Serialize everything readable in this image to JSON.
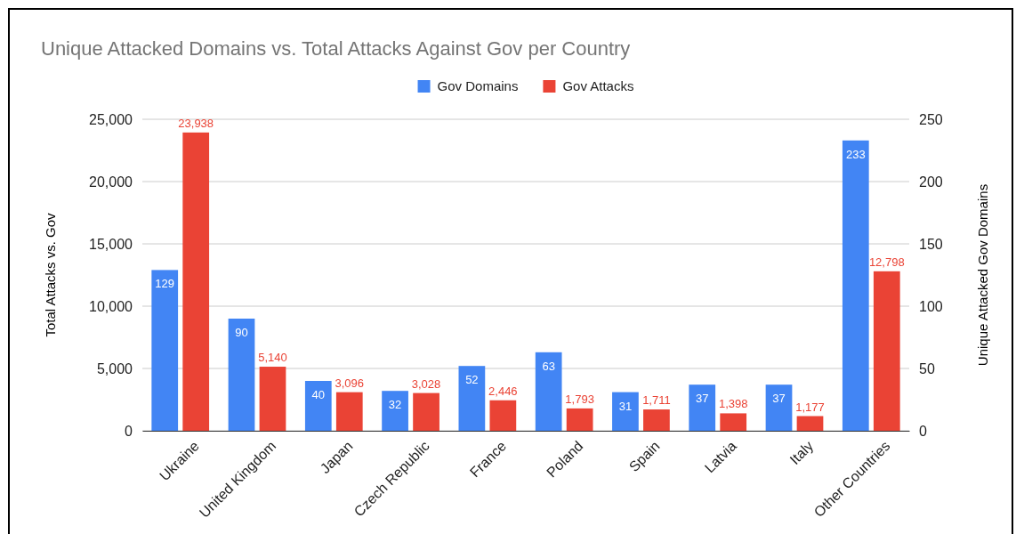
{
  "chart_data": {
    "type": "bar",
    "title": "Unique Attacked Domains vs. Total Attacks Against Gov per Country",
    "ylabel": "Total Attacks vs. Gov",
    "y2label": "Unique Attacked Gov Domains",
    "categories": [
      "Ukraine",
      "United Kingdom",
      "Japan",
      "Czech Republic",
      "France",
      "Poland",
      "Spain",
      "Latvia",
      "Italy",
      "Other Countries"
    ],
    "series": [
      {
        "name": "Gov Domains",
        "color": "#4285f4",
        "axis": "y2",
        "values": [
          129,
          90,
          40,
          32,
          52,
          63,
          31,
          37,
          37,
          233
        ]
      },
      {
        "name": "Gov Attacks",
        "color": "#ea4335",
        "values": [
          23938,
          5140,
          3096,
          3028,
          2446,
          1793,
          1711,
          1398,
          1177,
          12798
        ],
        "value_labels": [
          "23,938",
          "5,140",
          "3,096",
          "3,028",
          "2,446",
          "1,793",
          "1,711",
          "1,398",
          "1,177",
          "12,798"
        ]
      }
    ],
    "ylim": [
      0,
      25000
    ],
    "yticks": [
      {
        "value": 0,
        "label": "0"
      },
      {
        "value": 5000,
        "label": "5,000"
      },
      {
        "value": 10000,
        "label": "10,000"
      },
      {
        "value": 15000,
        "label": "15,000"
      },
      {
        "value": 20000,
        "label": "20,000"
      },
      {
        "value": 25000,
        "label": "25,000"
      }
    ],
    "y2lim": [
      0,
      250
    ],
    "y2ticks": [
      0,
      50,
      100,
      150,
      200,
      250
    ],
    "grid": "y",
    "legend": "top",
    "data_labels": true
  }
}
